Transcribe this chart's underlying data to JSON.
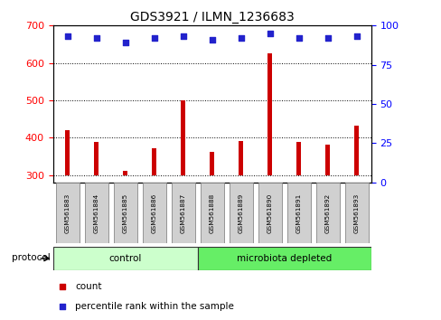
{
  "title": "GDS3921 / ILMN_1236683",
  "samples": [
    "GSM561883",
    "GSM561884",
    "GSM561885",
    "GSM561886",
    "GSM561887",
    "GSM561888",
    "GSM561889",
    "GSM561890",
    "GSM561891",
    "GSM561892",
    "GSM561893"
  ],
  "counts": [
    420,
    388,
    310,
    372,
    500,
    362,
    390,
    625,
    388,
    382,
    433
  ],
  "percentile_ranks": [
    93,
    92,
    89,
    92,
    93,
    91,
    92,
    95,
    92,
    92,
    93
  ],
  "ylim_left": [
    280,
    700
  ],
  "ylim_right": [
    0,
    100
  ],
  "yticks_left": [
    300,
    400,
    500,
    600,
    700
  ],
  "yticks_right": [
    0,
    25,
    50,
    75,
    100
  ],
  "bar_color": "#cc0000",
  "dot_color": "#2222cc",
  "bar_bottom": 300,
  "protocol_groups": [
    {
      "label": "control",
      "start": 0,
      "end": 5,
      "color": "#ccffcc"
    },
    {
      "label": "microbiota depleted",
      "start": 5,
      "end": 11,
      "color": "#66ee66"
    }
  ],
  "legend_items": [
    {
      "label": "count",
      "color": "#cc0000"
    },
    {
      "label": "percentile rank within the sample",
      "color": "#2222cc"
    }
  ],
  "protocol_label": "protocol",
  "title_fontsize": 10,
  "tick_fontsize": 8,
  "label_fontsize": 6,
  "bg_color": "#ffffff",
  "plot_bg_color": "#ffffff"
}
